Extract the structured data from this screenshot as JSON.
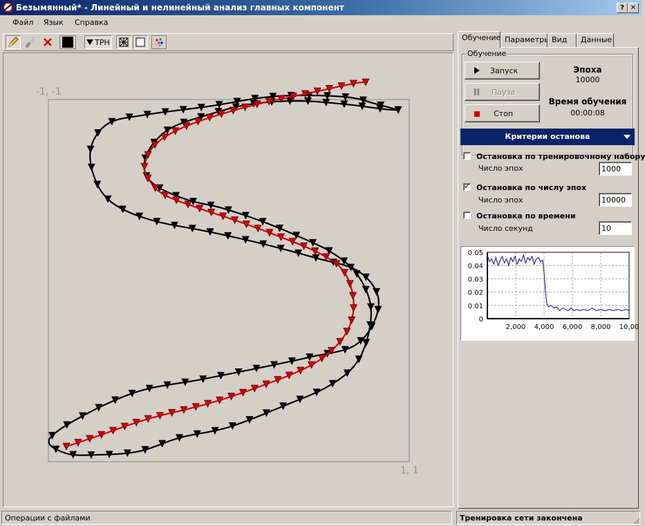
{
  "window": {
    "title": "Безымянный* - Линейный и нелинейный анализ главных компонент",
    "help_button": "?",
    "close_button": "✕"
  },
  "menu": [
    "Файл",
    "Язык",
    "Справка"
  ],
  "toolbar": {
    "icons": [
      "pencil-icon",
      "eraser-icon",
      "delete-icon",
      "black-square-icon",
      "trn-icon",
      "net-icon",
      "frame-icon",
      "palette-icon"
    ],
    "trn_label": "TРН"
  },
  "plot": {
    "corner_top_left": "-1, -1",
    "corner_bottom_right": "1, 1"
  },
  "tabs": [
    "Обучение",
    "Параметры",
    "Вид",
    "Данные"
  ],
  "active_tab": "Обучение",
  "training": {
    "group_title": "Обучение",
    "start_label": "Запуск",
    "pause_label": "Пауза",
    "stop_label": "Стоп",
    "epoch_title": "Эпоха",
    "epoch_value": "10000",
    "time_title": "Время обучения",
    "time_value": "00:00:08"
  },
  "criteria": {
    "header": "Критерии останова",
    "items": [
      {
        "label": "Остановка по тренировочному набору",
        "checked": false,
        "sub_label": "Число эпох",
        "value": "1000"
      },
      {
        "label": "Остановка по числу эпох",
        "checked": true,
        "sub_label": "Число эпох",
        "value": "10000"
      },
      {
        "label": "Остановка по времени",
        "checked": false,
        "sub_label": "Число секунд",
        "value": "10"
      }
    ]
  },
  "chart_data": {
    "type": "line",
    "title": "",
    "xlabel": "",
    "ylabel": "",
    "x_ticks": [
      "2,000",
      "4,000",
      "6,000",
      "8,000",
      "10,00"
    ],
    "y_ticks": [
      "0.05",
      "0.04",
      "0.03",
      "0.02",
      "0.01",
      "0"
    ],
    "xlim": [
      0,
      10000
    ],
    "ylim": [
      0,
      0.05
    ],
    "grid": true,
    "series": [
      {
        "color": "#0000ff",
        "x": [
          0,
          150,
          300,
          450,
          600,
          750,
          900,
          1050,
          1200,
          1350,
          1500,
          1650,
          1800,
          1950,
          2100,
          2250,
          2400,
          2550,
          2700,
          2850,
          3000,
          3150,
          3300,
          3450,
          3600,
          3750,
          3900,
          4000,
          4100,
          4200,
          4300,
          4500,
          4700,
          4900,
          5100,
          5300,
          5500,
          5700,
          5900,
          6100,
          6300,
          6500,
          6800,
          7100,
          7400,
          7700,
          8000,
          8300,
          8600,
          8900,
          9200,
          9500,
          9800,
          10000
        ],
        "values": [
          0.048,
          0.043,
          0.045,
          0.041,
          0.046,
          0.04,
          0.044,
          0.047,
          0.042,
          0.045,
          0.04,
          0.046,
          0.043,
          0.047,
          0.041,
          0.045,
          0.043,
          0.048,
          0.042,
          0.046,
          0.044,
          0.047,
          0.041,
          0.045,
          0.046,
          0.043,
          0.044,
          0.035,
          0.02,
          0.011,
          0.009,
          0.01,
          0.008,
          0.009,
          0.006,
          0.008,
          0.007,
          0.006,
          0.008,
          0.006,
          0.007,
          0.006,
          0.007,
          0.006,
          0.008,
          0.006,
          0.007,
          0.006,
          0.007,
          0.006,
          0.007,
          0.006,
          0.007,
          0.006
        ]
      }
    ]
  },
  "status": {
    "left": "Операции с файлами",
    "right": "Тренировка сети закончена"
  },
  "colors": {
    "curve_black": "#000000",
    "curve_red": "#e00000",
    "titlebar": "#0a246a",
    "face": "#d4d0c8"
  }
}
